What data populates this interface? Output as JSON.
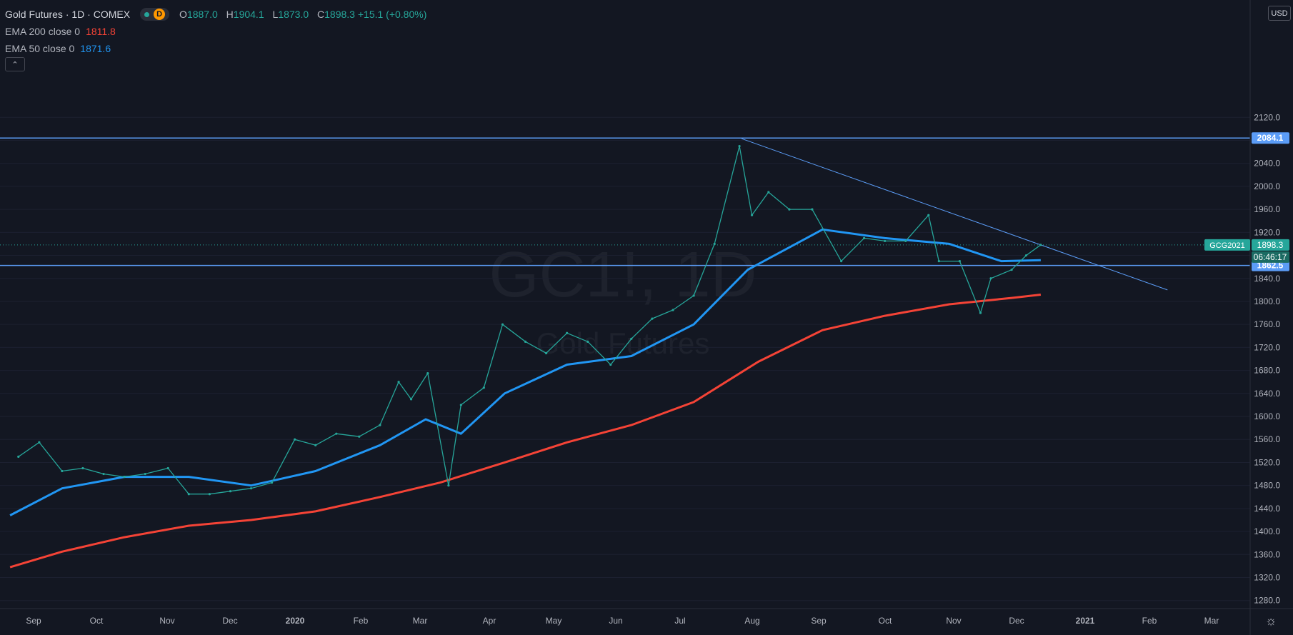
{
  "header": {
    "title": "Gold Futures · 1D · COMEX",
    "interval_badge": "D",
    "ohlc": [
      {
        "k": "O",
        "v": "1887.0"
      },
      {
        "k": "H",
        "v": "1904.1"
      },
      {
        "k": "L",
        "v": "1873.0"
      },
      {
        "k": "C",
        "v": "1898.3 +15.1 (+0.80%)"
      }
    ]
  },
  "indicators": [
    {
      "label": "EMA 200 close 0",
      "value": "1811.8",
      "color": "#f44336"
    },
    {
      "label": "EMA 50 close 0",
      "value": "1871.6",
      "color": "#2196f3"
    }
  ],
  "currency": "USD",
  "watermark": {
    "symbol": "GC1!, 1D",
    "name": "Gold Futures"
  },
  "chart_data": {
    "type": "line",
    "symbol": "GCG2021",
    "y_axis": {
      "min": 1260,
      "max": 2160,
      "ticks": [
        1280,
        1320,
        1360,
        1400,
        1440,
        1480,
        1520,
        1560,
        1600,
        1640,
        1680,
        1720,
        1760,
        1800,
        1840,
        1880,
        1920,
        1960,
        2000,
        2040,
        2080,
        2120
      ]
    },
    "x_labels": [
      "Sep",
      "Oct",
      "Nov",
      "Dec",
      "2020",
      "Feb",
      "Mar",
      "Apr",
      "May",
      "Jun",
      "Jul",
      "Aug",
      "Sep",
      "Oct",
      "Nov",
      "Dec",
      "2021",
      "Feb",
      "Mar"
    ],
    "price_points": [
      {
        "x": "2019-08-25",
        "y": 1530
      },
      {
        "x": "2019-09-04",
        "y": 1555
      },
      {
        "x": "2019-09-15",
        "y": 1505
      },
      {
        "x": "2019-09-25",
        "y": 1510
      },
      {
        "x": "2019-10-05",
        "y": 1500
      },
      {
        "x": "2019-10-15",
        "y": 1495
      },
      {
        "x": "2019-10-25",
        "y": 1500
      },
      {
        "x": "2019-11-05",
        "y": 1510
      },
      {
        "x": "2019-11-15",
        "y": 1465
      },
      {
        "x": "2019-11-25",
        "y": 1465
      },
      {
        "x": "2019-12-05",
        "y": 1470
      },
      {
        "x": "2019-12-15",
        "y": 1475
      },
      {
        "x": "2019-12-25",
        "y": 1485
      },
      {
        "x": "2020-01-05",
        "y": 1560
      },
      {
        "x": "2020-01-15",
        "y": 1550
      },
      {
        "x": "2020-01-25",
        "y": 1570
      },
      {
        "x": "2020-02-05",
        "y": 1565
      },
      {
        "x": "2020-02-15",
        "y": 1585
      },
      {
        "x": "2020-02-24",
        "y": 1660
      },
      {
        "x": "2020-03-01",
        "y": 1630
      },
      {
        "x": "2020-03-09",
        "y": 1675
      },
      {
        "x": "2020-03-19",
        "y": 1480
      },
      {
        "x": "2020-03-25",
        "y": 1620
      },
      {
        "x": "2020-04-05",
        "y": 1650
      },
      {
        "x": "2020-04-14",
        "y": 1760
      },
      {
        "x": "2020-04-25",
        "y": 1730
      },
      {
        "x": "2020-05-05",
        "y": 1710
      },
      {
        "x": "2020-05-15",
        "y": 1745
      },
      {
        "x": "2020-05-25",
        "y": 1730
      },
      {
        "x": "2020-06-05",
        "y": 1690
      },
      {
        "x": "2020-06-15",
        "y": 1735
      },
      {
        "x": "2020-06-25",
        "y": 1770
      },
      {
        "x": "2020-07-05",
        "y": 1785
      },
      {
        "x": "2020-07-15",
        "y": 1810
      },
      {
        "x": "2020-07-25",
        "y": 1900
      },
      {
        "x": "2020-08-06",
        "y": 2070
      },
      {
        "x": "2020-08-12",
        "y": 1950
      },
      {
        "x": "2020-08-20",
        "y": 1990
      },
      {
        "x": "2020-08-30",
        "y": 1960
      },
      {
        "x": "2020-09-10",
        "y": 1960
      },
      {
        "x": "2020-09-24",
        "y": 1870
      },
      {
        "x": "2020-10-05",
        "y": 1910
      },
      {
        "x": "2020-10-15",
        "y": 1905
      },
      {
        "x": "2020-10-25",
        "y": 1905
      },
      {
        "x": "2020-11-05",
        "y": 1950
      },
      {
        "x": "2020-11-10",
        "y": 1870
      },
      {
        "x": "2020-11-20",
        "y": 1870
      },
      {
        "x": "2020-11-30",
        "y": 1780
      },
      {
        "x": "2020-12-05",
        "y": 1840
      },
      {
        "x": "2020-12-15",
        "y": 1855
      },
      {
        "x": "2020-12-22",
        "y": 1880
      },
      {
        "x": "2020-12-29",
        "y": 1898.3
      }
    ],
    "series": [
      {
        "name": "EMA 200 close 0",
        "color": "#f44336",
        "points": [
          {
            "x": "2019-08-21",
            "y": 1338
          },
          {
            "x": "2019-09-15",
            "y": 1365
          },
          {
            "x": "2019-10-15",
            "y": 1390
          },
          {
            "x": "2019-11-15",
            "y": 1410
          },
          {
            "x": "2019-12-15",
            "y": 1420
          },
          {
            "x": "2020-01-15",
            "y": 1435
          },
          {
            "x": "2020-02-15",
            "y": 1460
          },
          {
            "x": "2020-03-15",
            "y": 1485
          },
          {
            "x": "2020-04-15",
            "y": 1520
          },
          {
            "x": "2020-05-15",
            "y": 1555
          },
          {
            "x": "2020-06-15",
            "y": 1585
          },
          {
            "x": "2020-07-15",
            "y": 1625
          },
          {
            "x": "2020-08-15",
            "y": 1695
          },
          {
            "x": "2020-09-15",
            "y": 1750
          },
          {
            "x": "2020-10-15",
            "y": 1775
          },
          {
            "x": "2020-11-15",
            "y": 1795
          },
          {
            "x": "2020-12-15",
            "y": 1806
          },
          {
            "x": "2020-12-29",
            "y": 1811.8
          }
        ]
      },
      {
        "name": "EMA 50 close 0",
        "color": "#2196f3",
        "points": [
          {
            "x": "2019-08-21",
            "y": 1428
          },
          {
            "x": "2019-09-15",
            "y": 1475
          },
          {
            "x": "2019-10-15",
            "y": 1495
          },
          {
            "x": "2019-11-15",
            "y": 1495
          },
          {
            "x": "2019-12-15",
            "y": 1480
          },
          {
            "x": "2020-01-15",
            "y": 1505
          },
          {
            "x": "2020-02-15",
            "y": 1550
          },
          {
            "x": "2020-03-08",
            "y": 1595
          },
          {
            "x": "2020-03-25",
            "y": 1570
          },
          {
            "x": "2020-04-15",
            "y": 1640
          },
          {
            "x": "2020-05-15",
            "y": 1690
          },
          {
            "x": "2020-06-15",
            "y": 1705
          },
          {
            "x": "2020-07-15",
            "y": 1760
          },
          {
            "x": "2020-08-10",
            "y": 1855
          },
          {
            "x": "2020-09-15",
            "y": 1925
          },
          {
            "x": "2020-10-15",
            "y": 1910
          },
          {
            "x": "2020-11-15",
            "y": 1900
          },
          {
            "x": "2020-12-10",
            "y": 1870
          },
          {
            "x": "2020-12-29",
            "y": 1871.6
          }
        ]
      }
    ],
    "horizontal_levels": [
      {
        "value": 2084.1,
        "label": "2084.1",
        "color": "#5b9cf6"
      },
      {
        "value": 1862.5,
        "label": "1862.5",
        "color": "#5b9cf6"
      }
    ],
    "trendline": {
      "from": {
        "x": "2020-08-07",
        "y": 2083
      },
      "to": {
        "x": "2021-02-28",
        "y": 1820
      },
      "color": "#5b9cf6"
    },
    "last_price": {
      "label": "GCG2021",
      "value": "1898.3",
      "countdown": "06:46:17",
      "color": "#26a69a"
    }
  }
}
